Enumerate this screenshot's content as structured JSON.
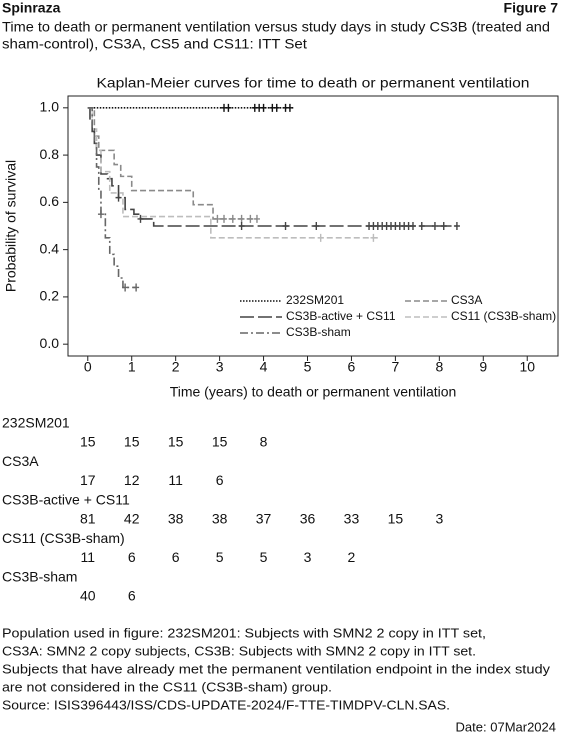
{
  "header": {
    "left": "Spinraza",
    "right": "Figure 7",
    "caption": [
      "Time to death or permanent ventilation versus study days in study CS3B (treated and",
      "sham-control), CS3A, CS5 and CS11: ITT Set"
    ]
  },
  "chart_data": {
    "type": "km-step",
    "title": "Kaplan-Meier curves for time to death or permanent ventilation",
    "x_label": "Time (years) to death or permanent ventilation",
    "y_label": "Probability of survival",
    "xlim": [
      -0.45,
      10.7
    ],
    "ylim": [
      -0.05,
      1.05
    ],
    "xticks": [
      0,
      1,
      2,
      3,
      4,
      5,
      6,
      7,
      8,
      9,
      10
    ],
    "yticks": [
      {
        "value": 1,
        "label": "1.0"
      },
      0.8,
      0.6,
      0.4,
      0.2,
      {
        "value": 0,
        "label": "0.0"
      }
    ],
    "series": [
      {
        "name": "232SM201",
        "color": "#111111",
        "style": "dotted",
        "x": [
          0,
          4.7
        ],
        "values": [
          1,
          1
        ],
        "censor_x": [
          3.1,
          3.2,
          3.8,
          3.9,
          4.0,
          4.2,
          4.3,
          4.5,
          4.6
        ],
        "censor_values": [
          1,
          1,
          1,
          1,
          1,
          1,
          1,
          1,
          1
        ]
      },
      {
        "name": "CS3A",
        "color": "#8a8a8a",
        "style": "dashed",
        "x": [
          0,
          0.15,
          0.25,
          0.6,
          0.75,
          1.0,
          2.4,
          2.85,
          3.85
        ],
        "values": [
          1,
          0.88,
          0.82,
          0.76,
          0.71,
          0.65,
          0.59,
          0.53,
          0.53
        ],
        "censor_x": [
          2.95,
          3.1,
          3.3,
          3.5,
          3.7,
          3.85
        ],
        "censor_values": [
          0.53,
          0.53,
          0.53,
          0.53,
          0.53,
          0.53
        ]
      },
      {
        "name": "CS3B-active + CS11",
        "color": "#444444",
        "style": "longdash",
        "x": [
          0,
          0.05,
          0.1,
          0.15,
          0.2,
          0.3,
          0.45,
          0.55,
          0.7,
          0.85,
          1.05,
          1.2,
          1.5,
          8.4
        ],
        "values": [
          1,
          0.95,
          0.9,
          0.85,
          0.8,
          0.72,
          0.7,
          0.67,
          0.62,
          0.57,
          0.55,
          0.53,
          0.5,
          0.5
        ],
        "censor_x": [
          0.7,
          1.2,
          3.5,
          4.5,
          5.2,
          6.4,
          6.5,
          6.6,
          6.7,
          6.8,
          6.9,
          7.0,
          7.1,
          7.2,
          7.3,
          7.4,
          7.6,
          7.9,
          8.1,
          8.4
        ],
        "censor_values": [
          0.62,
          0.53,
          0.5,
          0.5,
          0.5,
          0.5,
          0.5,
          0.5,
          0.5,
          0.5,
          0.5,
          0.5,
          0.5,
          0.5,
          0.5,
          0.5,
          0.5,
          0.5,
          0.5,
          0.5
        ]
      },
      {
        "name": "CS11 (CS3B-sham)",
        "color": "#bdbdbd",
        "style": "dashed",
        "x": [
          0,
          0.1,
          0.2,
          0.3,
          0.5,
          0.8,
          2.8,
          6.6
        ],
        "values": [
          1,
          0.91,
          0.82,
          0.73,
          0.64,
          0.54,
          0.45,
          0.45
        ],
        "censor_x": [
          5.3,
          6.5
        ],
        "censor_values": [
          0.45,
          0.45
        ]
      },
      {
        "name": "CS3B-sham",
        "color": "#666666",
        "style": "dashdot",
        "x": [
          0,
          0.1,
          0.15,
          0.2,
          0.25,
          0.3,
          0.4,
          0.5,
          0.6,
          0.7,
          0.8,
          1.1
        ],
        "values": [
          1,
          0.92,
          0.85,
          0.75,
          0.65,
          0.55,
          0.45,
          0.38,
          0.33,
          0.28,
          0.24,
          0.24
        ],
        "censor_x": [
          0.3,
          0.85,
          1.1
        ],
        "censor_values": [
          0.55,
          0.24,
          0.24
        ]
      }
    ]
  },
  "risk_table": {
    "rows": [
      {
        "name": "232SM201",
        "counts": [
          "15",
          "15",
          "15",
          "15",
          "8"
        ]
      },
      {
        "name": "CS3A",
        "counts": [
          "17",
          "12",
          "11",
          "6"
        ]
      },
      {
        "name": "CS3B-active + CS11",
        "counts": [
          "81",
          "42",
          "38",
          "38",
          "37",
          "36",
          "33",
          "15",
          "3"
        ]
      },
      {
        "name": "CS11 (CS3B-sham)",
        "counts": [
          "11",
          "6",
          "6",
          "5",
          "5",
          "3",
          "2"
        ]
      },
      {
        "name": "CS3B-sham",
        "counts": [
          "40",
          "6"
        ]
      }
    ]
  },
  "footnotes": [
    "Population used in figure: 232SM201: Subjects with SMN2 2 copy in ITT set,",
    "CS3A: SMN2 2 copy subjects, CS3B: Subjects with SMN2 2 copy in ITT set.",
    "Subjects that have already met the permanent ventilation endpoint in the index study",
    "are not considered in the CS11 (CS3B-sham) group.",
    "Source: ISIS396443/ISS/CDS-UPDATE-2024/F-TTE-TIMDPV-CLN.SAS."
  ],
  "date": "Date: 07Mar2024"
}
